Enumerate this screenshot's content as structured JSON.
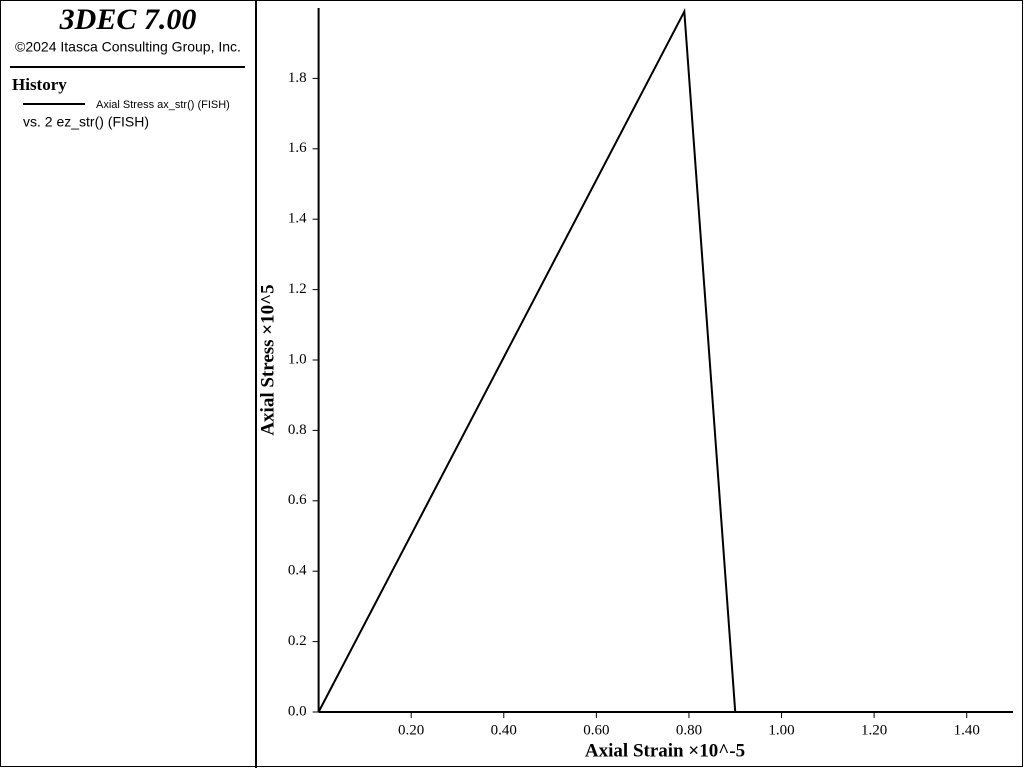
{
  "chart_data": {
    "type": "line",
    "title": "3DEC 7.00",
    "subtitle": "©2024 Itasca Consulting Group, Inc.",
    "legend_title": "History",
    "legend_note": "vs. 2 ez_str() (FISH)",
    "x_label": "Axial Strain ×10^-5",
    "y_label": "Axial Stress ×10^5",
    "x": [
      0,
      0.79,
      0.9
    ],
    "series": [
      {
        "name": "Axial Stress ax_str() (FISH)",
        "color": "#000000",
        "values": [
          0,
          1.99,
          0
        ]
      }
    ],
    "xlim": [
      0,
      1.5
    ],
    "ylim": [
      0,
      2.0
    ],
    "xticks": [
      {
        "value": 0.2,
        "label": "0.20"
      },
      {
        "value": 0.4,
        "label": "0.40"
      },
      {
        "value": 0.6,
        "label": "0.60"
      },
      {
        "value": 0.8,
        "label": "0.80"
      },
      {
        "value": 1.0,
        "label": "1.00"
      },
      {
        "value": 1.2,
        "label": "1.20"
      },
      {
        "value": 1.4,
        "label": "1.40"
      }
    ],
    "yticks": [
      {
        "value": 0,
        "label": "0.0"
      },
      0.2,
      0.4,
      0.6,
      0.8,
      {
        "value": 1.0,
        "label": "1.0"
      },
      1.2,
      1.4,
      1.6,
      1.8
    ],
    "grid": false
  }
}
